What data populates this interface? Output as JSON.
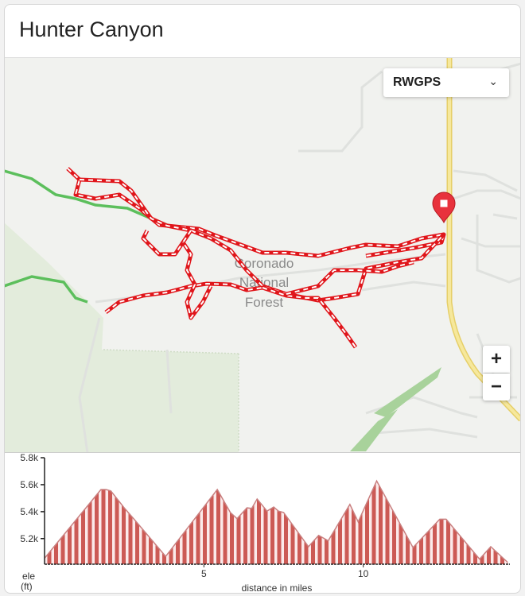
{
  "header": {
    "title": "Hunter Canyon"
  },
  "map": {
    "layer_select": {
      "value": "RWGPS",
      "icon": "chevron-down-icon"
    },
    "place_label": [
      "Coronado",
      "National",
      "Forest"
    ],
    "zoom_in_label": "+",
    "zoom_out_label": "−",
    "colors": {
      "track": "#e0161b",
      "road": "#f1dc7a",
      "trail": "#5cbf5c",
      "park": "#e3ecdc",
      "marker": "#e8323c"
    }
  },
  "chart_data": {
    "type": "area",
    "xlabel": "distance in miles",
    "ylabel": "ele\n(ft)",
    "ylabel_lines": [
      "ele",
      "(ft)"
    ],
    "x_ticks": [
      "5",
      "10"
    ],
    "x_tick_values": [
      5,
      10
    ],
    "y_ticks": [
      "5.2k",
      "5.4k",
      "5.6k",
      "5.8k"
    ],
    "y_tick_values": [
      5200,
      5400,
      5600,
      5800
    ],
    "xlim": [
      0,
      14.6
    ],
    "ylim": [
      5010,
      5800
    ],
    "fill": "striped red/white",
    "color": "#cc5a55",
    "x": [
      0,
      1.77,
      1.93,
      2.08,
      2.5,
      2.81,
      3.8,
      5.42,
      5.83,
      6.04,
      6.35,
      6.5,
      6.67,
      6.98,
      7.19,
      7.34,
      7.5,
      8.28,
      8.6,
      8.9,
      9.58,
      9.84,
      10.42,
      11.56,
      12.4,
      12.6,
      13.65,
      14.0,
      14.53
    ],
    "y": [
      5054,
      5564,
      5564,
      5554,
      5428,
      5344,
      5068,
      5564,
      5394,
      5348,
      5428,
      5424,
      5494,
      5404,
      5434,
      5404,
      5394,
      5140,
      5224,
      5184,
      5454,
      5324,
      5628,
      5134,
      5344,
      5344,
      5048,
      5140,
      5024
    ]
  }
}
